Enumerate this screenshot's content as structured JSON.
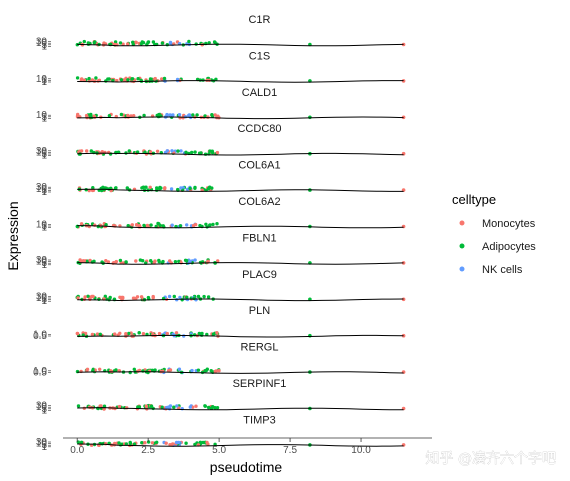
{
  "watermark": "知乎 @凑齐六个字吧",
  "chart_data": {
    "type": "scatter",
    "xlabel": "pseudotime",
    "ylabel": "Expression",
    "xlim": [
      -0.5,
      12.5
    ],
    "x_ticks": [
      0.0,
      2.5,
      5.0,
      7.5,
      10.0
    ],
    "x_tick_labels": [
      "0.0",
      "2.5",
      "5.0",
      "7.5",
      "10.0"
    ],
    "legend": {
      "title": "celltype",
      "position": "right",
      "entries": [
        {
          "name": "Monocytes",
          "color": "#f8766d"
        },
        {
          "name": "Adipocytes",
          "color": "#00ba38"
        },
        {
          "name": "NK cells",
          "color": "#619cff"
        }
      ]
    },
    "grid": false,
    "panels": [
      {
        "gene": "C1R",
        "tick_labels": [
          "30",
          "10",
          "3",
          "1"
        ]
      },
      {
        "gene": "C1S",
        "tick_labels": [
          "10",
          "3",
          "1"
        ]
      },
      {
        "gene": "CALD1",
        "tick_labels": [
          "10",
          "3",
          "1"
        ]
      },
      {
        "gene": "CCDC80",
        "tick_labels": [
          "30",
          "10",
          "3",
          "1"
        ]
      },
      {
        "gene": "COL6A1",
        "tick_labels": [
          "30",
          "10",
          "3",
          "1"
        ]
      },
      {
        "gene": "COL6A2",
        "tick_labels": [
          "10",
          "3",
          "1"
        ]
      },
      {
        "gene": "FBLN1",
        "tick_labels": [
          "30",
          "10",
          "3",
          "1"
        ]
      },
      {
        "gene": "PLAC9",
        "tick_labels": [
          "30",
          "10",
          "3",
          "1"
        ]
      },
      {
        "gene": "PLN",
        "tick_labels": [
          "1.0",
          "0.5"
        ]
      },
      {
        "gene": "RERGL",
        "tick_labels": [
          "1.0",
          "0.5"
        ]
      },
      {
        "gene": "SERPINF1",
        "tick_labels": [
          "30",
          "10",
          "3",
          "1"
        ]
      },
      {
        "gene": "TIMP3",
        "tick_labels": [
          "30",
          "10",
          "3",
          "1"
        ]
      }
    ],
    "isolated_points_x": [
      8.2,
      11.5
    ],
    "points_x_range": [
      0.0,
      5.0
    ]
  }
}
